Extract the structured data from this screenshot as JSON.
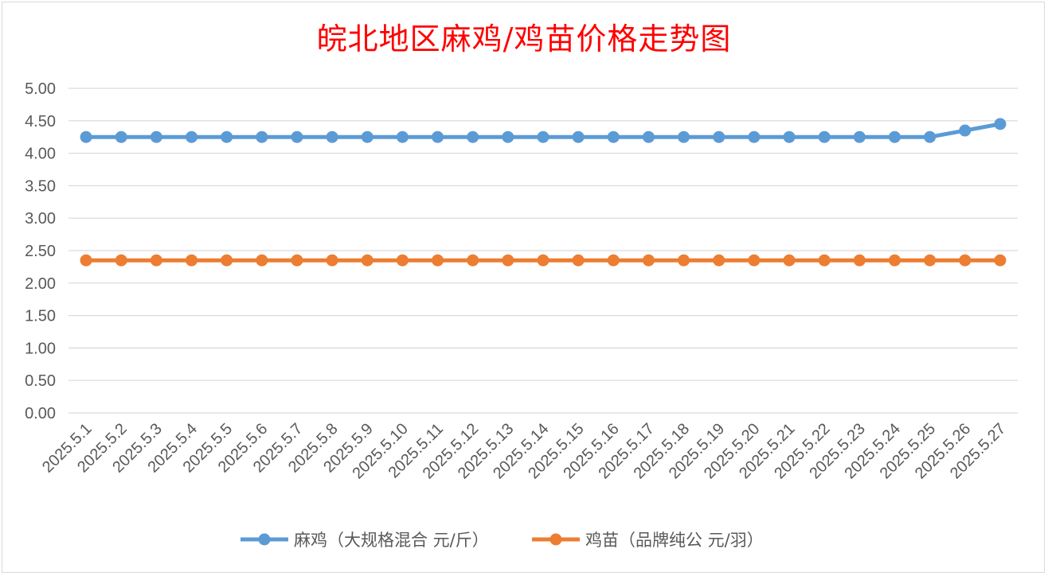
{
  "chart_data": {
    "type": "line",
    "title": "皖北地区麻鸡/鸡苗价格走势图",
    "categories": [
      "2025.5.1",
      "2025.5.2",
      "2025.5.3",
      "2025.5.4",
      "2025.5.5",
      "2025.5.6",
      "2025.5.7",
      "2025.5.8",
      "2025.5.9",
      "2025.5.10",
      "2025.5.11",
      "2025.5.12",
      "2025.5.13",
      "2025.5.14",
      "2025.5.15",
      "2025.5.16",
      "2025.5.17",
      "2025.5.18",
      "2025.5.19",
      "2025.5.20",
      "2025.5.21",
      "2025.5.22",
      "2025.5.23",
      "2025.5.24",
      "2025.5.25",
      "2025.5.26",
      "2025.5.27"
    ],
    "series": [
      {
        "name": "麻鸡（大规格混合 元/斤）",
        "color": "#5b9bd5",
        "values": [
          4.25,
          4.25,
          4.25,
          4.25,
          4.25,
          4.25,
          4.25,
          4.25,
          4.25,
          4.25,
          4.25,
          4.25,
          4.25,
          4.25,
          4.25,
          4.25,
          4.25,
          4.25,
          4.25,
          4.25,
          4.25,
          4.25,
          4.25,
          4.25,
          4.25,
          4.35,
          4.45
        ]
      },
      {
        "name": "鸡苗（品牌纯公 元/羽）",
        "color": "#ed7d31",
        "values": [
          2.35,
          2.35,
          2.35,
          2.35,
          2.35,
          2.35,
          2.35,
          2.35,
          2.35,
          2.35,
          2.35,
          2.35,
          2.35,
          2.35,
          2.35,
          2.35,
          2.35,
          2.35,
          2.35,
          2.35,
          2.35,
          2.35,
          2.35,
          2.35,
          2.35,
          2.35,
          2.35
        ]
      }
    ],
    "yticks": [
      "0.00",
      "0.50",
      "1.00",
      "1.50",
      "2.00",
      "2.50",
      "3.00",
      "3.50",
      "4.00",
      "4.50",
      "5.00"
    ],
    "ylim": [
      0,
      5
    ],
    "grid": true,
    "legend": "bottom"
  }
}
